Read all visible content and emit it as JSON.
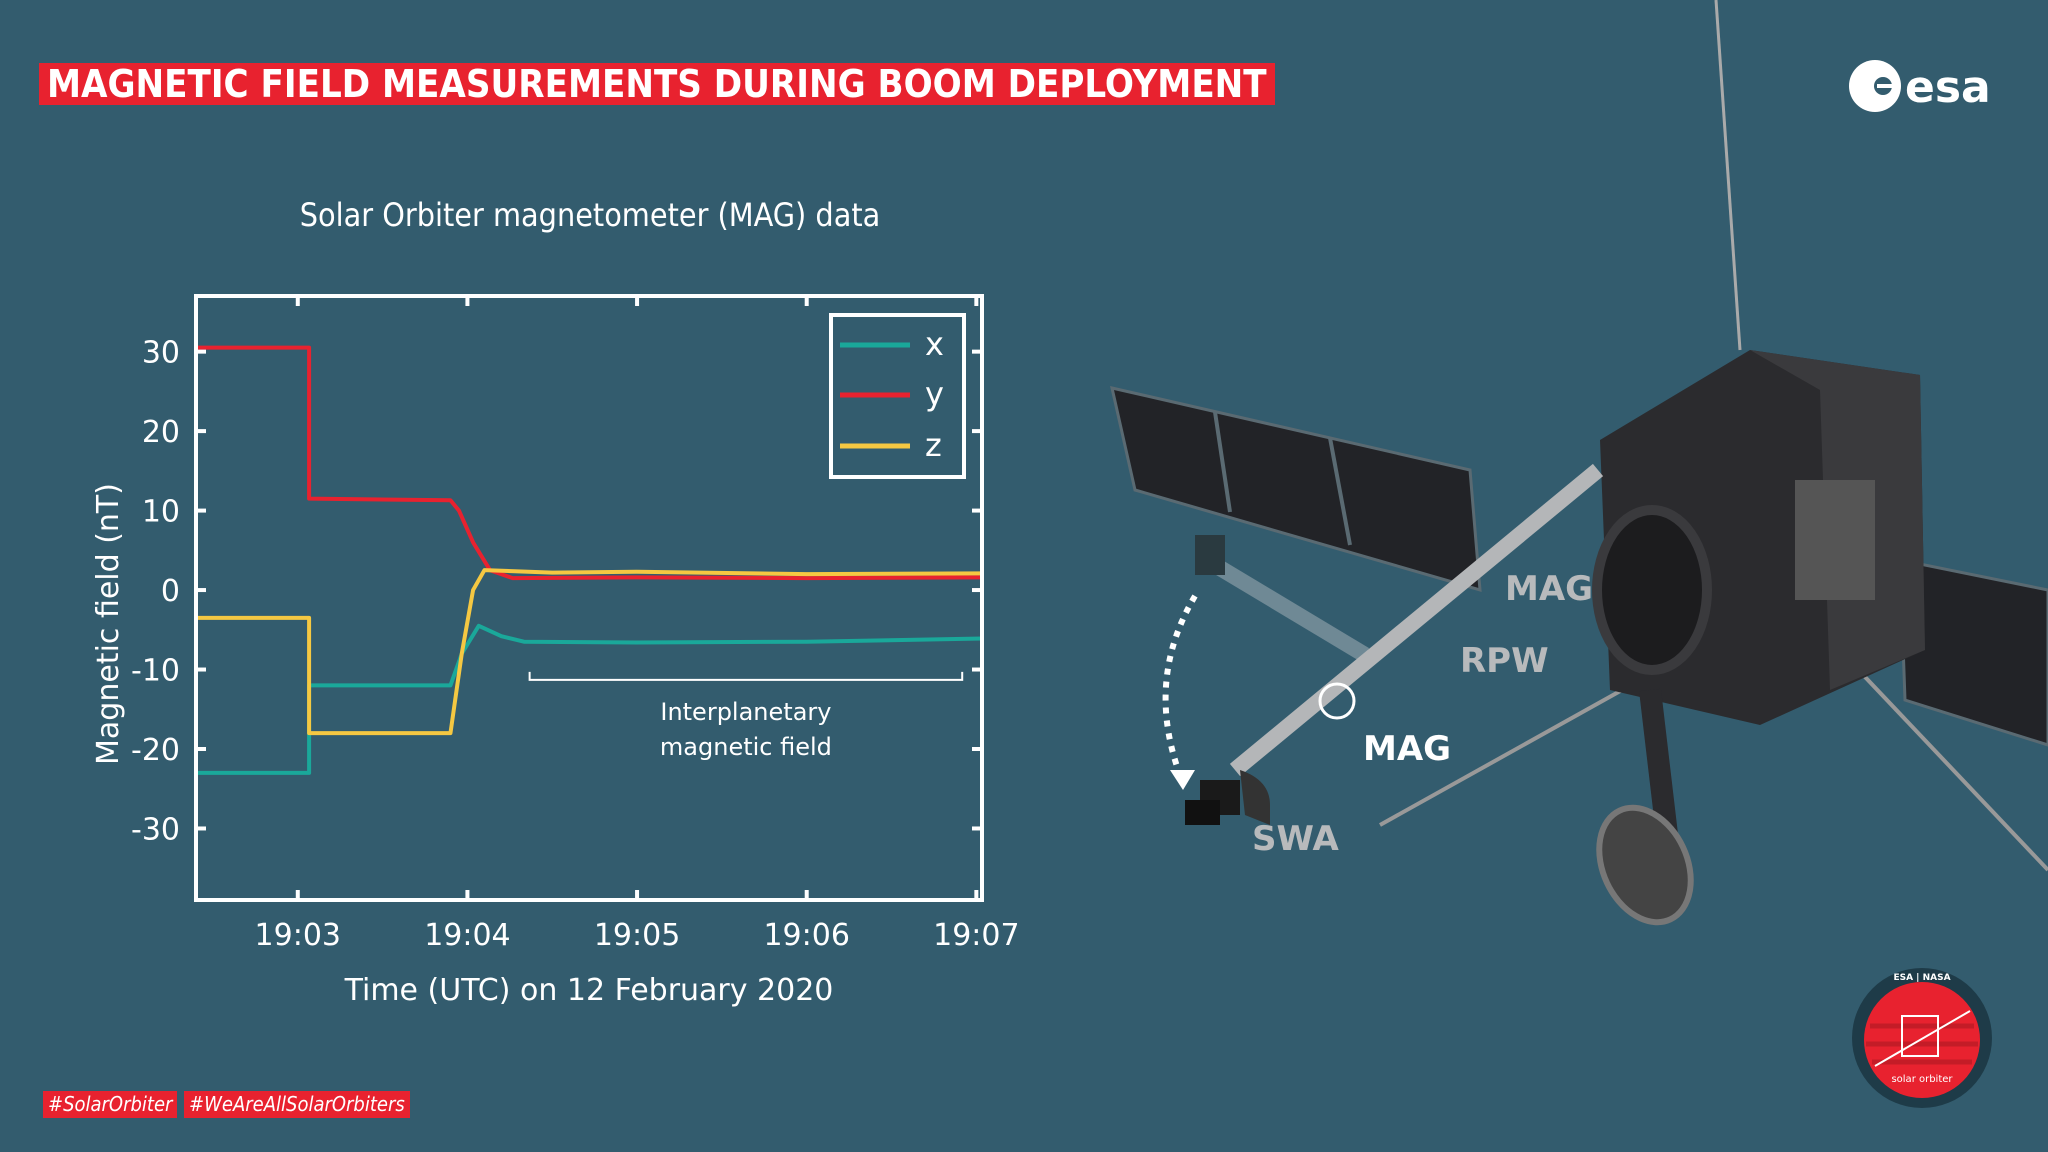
{
  "header": {
    "title": "MAGNETIC FIELD MEASUREMENTS DURING BOOM DEPLOYMENT",
    "logo": "esa"
  },
  "chart_data": {
    "type": "line",
    "title": "Solar Orbiter magnetometer (MAG) data",
    "xlabel": "Time (UTC) on 12 February 2020",
    "ylabel": "Magnetic field (nT)",
    "xlim": [
      "19:02:24",
      "19:07:02"
    ],
    "ylim": [
      -39,
      37
    ],
    "x_ticks": [
      "19:03",
      "19:04",
      "19:05",
      "19:06",
      "19:07"
    ],
    "y_ticks": [
      30,
      20,
      10,
      0,
      -10,
      -20,
      -30
    ],
    "y_tick_labels": [
      "30",
      "20",
      "10",
      "0",
      "-10",
      "-20",
      "-30"
    ],
    "grid": false,
    "legend_position": "top-right",
    "series": [
      {
        "name": "x",
        "color": "#1aa89a",
        "points": [
          [
            "19:02:24",
            -23
          ],
          [
            "19:03:04",
            -23
          ],
          [
            "19:03:04",
            -12
          ],
          [
            "19:03:54",
            -12
          ],
          [
            "19:03:58",
            -8
          ],
          [
            "19:04:04",
            -4.5
          ],
          [
            "19:04:12",
            -5.8
          ],
          [
            "19:04:20",
            -6.5
          ],
          [
            "19:05:00",
            -6.6
          ],
          [
            "19:06:00",
            -6.5
          ],
          [
            "19:07:02",
            -6.1
          ]
        ]
      },
      {
        "name": "y",
        "color": "#e8222f",
        "points": [
          [
            "19:02:24",
            30.5
          ],
          [
            "19:03:04",
            30.5
          ],
          [
            "19:03:04",
            11.5
          ],
          [
            "19:03:54",
            11.3
          ],
          [
            "19:03:57",
            10
          ],
          [
            "19:04:02",
            6
          ],
          [
            "19:04:08",
            2.5
          ],
          [
            "19:04:16",
            1.5
          ],
          [
            "19:05:00",
            1.6
          ],
          [
            "19:06:00",
            1.5
          ],
          [
            "19:07:02",
            1.6
          ]
        ]
      },
      {
        "name": "z",
        "color": "#f5c842",
        "points": [
          [
            "19:02:24",
            -3.5
          ],
          [
            "19:03:04",
            -3.5
          ],
          [
            "19:03:04",
            -18
          ],
          [
            "19:03:54",
            -18
          ],
          [
            "19:03:58",
            -8
          ],
          [
            "19:04:02",
            0
          ],
          [
            "19:04:06",
            2.5
          ],
          [
            "19:04:30",
            2.2
          ],
          [
            "19:05:00",
            2.3
          ],
          [
            "19:06:00",
            2.0
          ],
          [
            "19:07:02",
            2.1
          ]
        ]
      }
    ],
    "annotations": [
      {
        "text_line1": "Interplanetary",
        "text_line2": "magnetic field",
        "x_range": [
          "19:04:22",
          "19:06:55"
        ],
        "y": -11.3
      }
    ]
  },
  "illustration": {
    "labels": {
      "mag_boom": "MAG",
      "mag_body": "MAG",
      "rpw": "RPW",
      "swa": "SWA"
    }
  },
  "footer": {
    "hashtags": [
      "#SolarOrbiter",
      "#WeAreAllSolarOrbiters"
    ],
    "badge_top": "ESA | NASA",
    "badge_bottom": "solar orbiter"
  },
  "colors": {
    "background": "#335c6e",
    "accent": "#e8222f"
  }
}
